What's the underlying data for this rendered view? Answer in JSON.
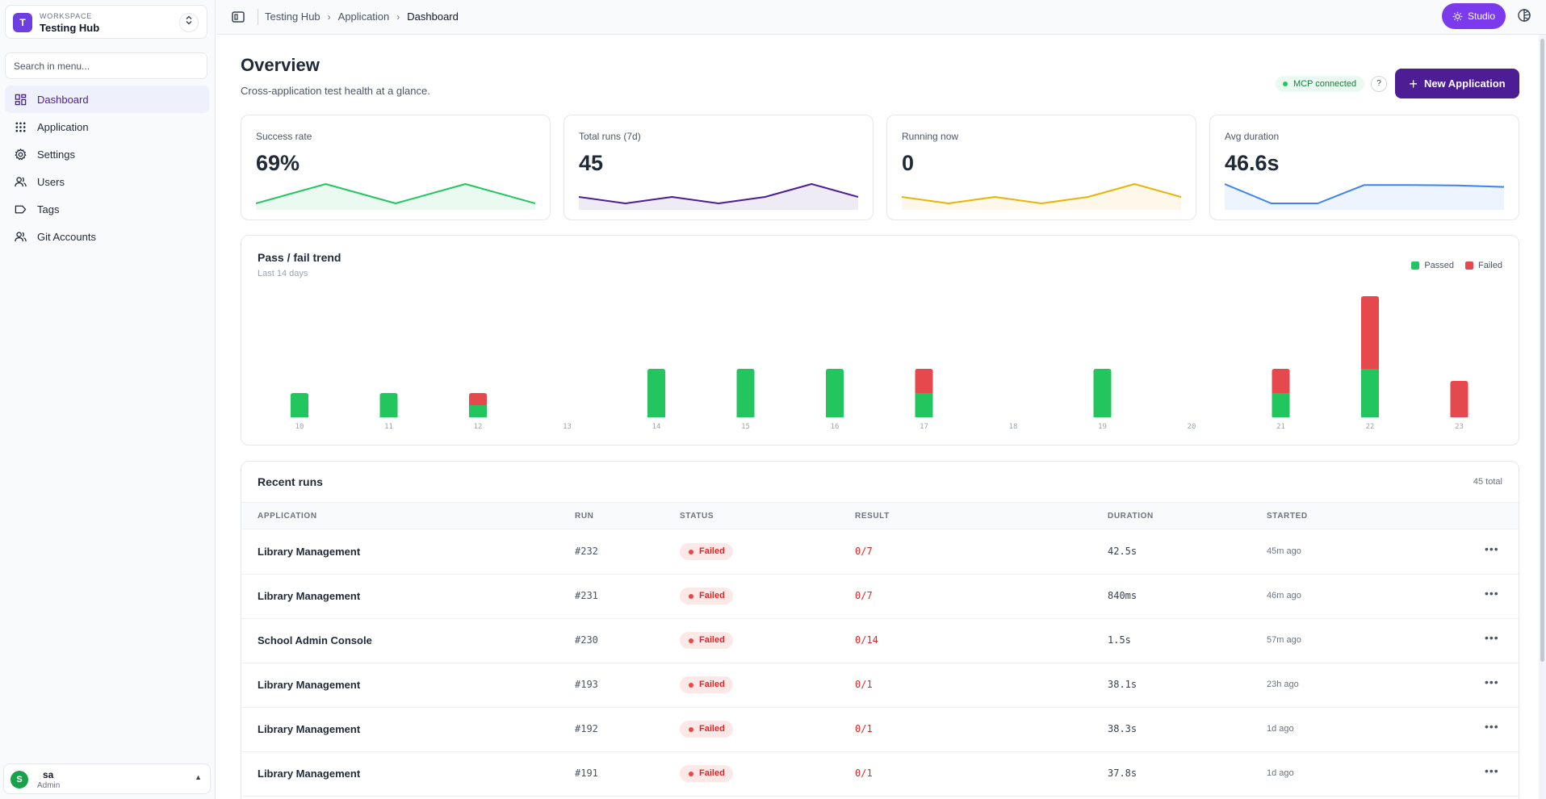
{
  "workspace": {
    "initial": "T",
    "label": "WORKSPACE",
    "name": "Testing Hub",
    "switch_icon": "chevron-up-down-icon"
  },
  "search": {
    "placeholder": "Search in menu..."
  },
  "nav": [
    {
      "label": "Dashboard",
      "icon": "dashboard-icon",
      "active": true
    },
    {
      "label": "Application",
      "icon": "grid-icon",
      "active": false
    },
    {
      "label": "Settings",
      "icon": "gear-icon",
      "active": false
    },
    {
      "label": "Users",
      "icon": "users-icon",
      "active": false
    },
    {
      "label": "Tags",
      "icon": "tag-icon",
      "active": false
    },
    {
      "label": "Git Accounts",
      "icon": "git-accounts-icon",
      "active": false
    }
  ],
  "user": {
    "initial": "S",
    "name": "sa",
    "role": "Admin"
  },
  "breadcrumb": [
    "Testing Hub",
    "Application",
    "Dashboard"
  ],
  "studio_label": "Studio",
  "header": {
    "title": "Overview",
    "subtitle": "Cross-application test health at a glance.",
    "mcp_status": "MCP connected",
    "help": "?",
    "new_app_label": "New Application"
  },
  "colors": {
    "accent": "#4c1d95",
    "passed": "#22c55e",
    "failed": "#e5484d"
  },
  "stats": [
    {
      "label": "Success rate",
      "value": "69%",
      "color": "#22c55e",
      "spark": [
        0,
        1,
        0,
        1,
        0
      ]
    },
    {
      "label": "Total runs (7d)",
      "value": "45",
      "color": "#4c1d95",
      "spark": [
        1,
        0,
        1,
        0,
        1,
        3,
        1
      ]
    },
    {
      "label": "Running now",
      "value": "0",
      "color": "#eab308",
      "spark": [
        1,
        0,
        1,
        0,
        1,
        3,
        1
      ]
    },
    {
      "label": "Avg duration",
      "value": "46.6s",
      "color": "#3b82f6",
      "spark": [
        42,
        2,
        2,
        40,
        40,
        39,
        36
      ]
    }
  ],
  "chart_data": {
    "type": "bar",
    "title": "Pass / fail trend",
    "subtitle": "Last 14 days",
    "categories": [
      "10",
      "11",
      "12",
      "13",
      "14",
      "15",
      "16",
      "17",
      "18",
      "19",
      "20",
      "21",
      "22",
      "23"
    ],
    "series": [
      {
        "name": "Passed",
        "values": [
          1,
          1,
          0.5,
          0,
          2,
          2,
          2,
          1,
          0,
          2,
          0,
          1,
          2,
          0
        ]
      },
      {
        "name": "Failed",
        "values": [
          0,
          0,
          0.5,
          0,
          0,
          0,
          0,
          1,
          0,
          0,
          0,
          1,
          3,
          1.5
        ]
      }
    ],
    "stacked": true,
    "legend": "top-right"
  },
  "runs": {
    "title": "Recent runs",
    "total": "45 total",
    "columns": [
      "APPLICATION",
      "RUN",
      "STATUS",
      "RESULT",
      "DURATION",
      "STARTED"
    ],
    "rows": [
      {
        "app": "Library Management",
        "run": "#232",
        "status": "Failed",
        "result": "0/7",
        "duration": "42.5s",
        "started": "45m ago"
      },
      {
        "app": "Library Management",
        "run": "#231",
        "status": "Failed",
        "result": "0/7",
        "duration": "840ms",
        "started": "46m ago"
      },
      {
        "app": "School Admin Console",
        "run": "#230",
        "status": "Failed",
        "result": "0/14",
        "duration": "1.5s",
        "started": "57m ago"
      },
      {
        "app": "Library Management",
        "run": "#193",
        "status": "Failed",
        "result": "0/1",
        "duration": "38.1s",
        "started": "23h ago"
      },
      {
        "app": "Library Management",
        "run": "#192",
        "status": "Failed",
        "result": "0/1",
        "duration": "38.3s",
        "started": "1d ago"
      },
      {
        "app": "Library Management",
        "run": "#191",
        "status": "Failed",
        "result": "0/1",
        "duration": "37.8s",
        "started": "1d ago"
      }
    ]
  }
}
